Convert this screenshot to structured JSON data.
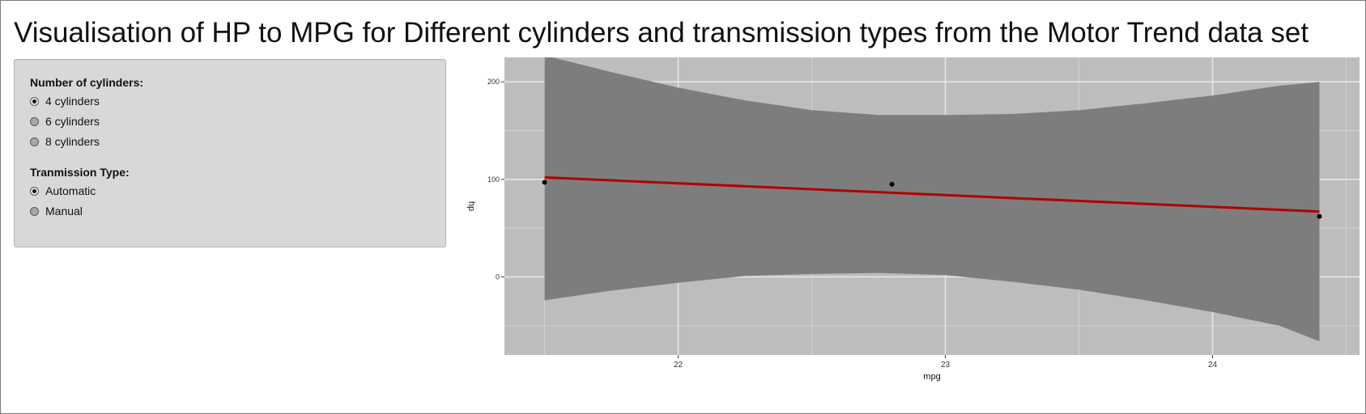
{
  "page": {
    "title": "Visualisation of HP to MPG for Different cylinders and transmission types from the Motor Trend data set"
  },
  "sidebar": {
    "cylinders": {
      "label": "Number of cylinders:",
      "options": [
        {
          "label": "4 cylinders",
          "selected": true
        },
        {
          "label": "6 cylinders",
          "selected": false
        },
        {
          "label": "8 cylinders",
          "selected": false
        }
      ]
    },
    "transmission": {
      "label": "Tranmission Type:",
      "options": [
        {
          "label": "Automatic",
          "selected": true
        },
        {
          "label": "Manual",
          "selected": false
        }
      ]
    }
  },
  "chart_data": {
    "type": "scatter",
    "xlabel": "mpg",
    "ylabel": "hp",
    "xlim": [
      21.35,
      24.55
    ],
    "ylim": [
      -80,
      225
    ],
    "x_ticks": [
      22,
      23,
      24
    ],
    "y_ticks": [
      0,
      100,
      200
    ],
    "grid": true,
    "points": [
      {
        "x": 21.5,
        "y": 97
      },
      {
        "x": 22.8,
        "y": 95
      },
      {
        "x": 24.4,
        "y": 62
      }
    ],
    "fit_line": {
      "x": [
        21.5,
        24.4
      ],
      "y": [
        102,
        67
      ],
      "color": "#b00000"
    },
    "confidence_band": {
      "x": [
        21.5,
        21.75,
        22.0,
        22.25,
        22.5,
        22.75,
        23.0,
        23.25,
        23.5,
        23.75,
        24.0,
        24.25,
        24.4
      ],
      "upper": [
        227,
        210,
        194,
        181,
        171,
        166,
        166,
        167,
        171,
        178,
        186,
        196,
        200
      ],
      "lower": [
        -24,
        -14,
        -6,
        1,
        3,
        4,
        2,
        -5,
        -13,
        -24,
        -36,
        -50,
        -66
      ]
    },
    "colors": {
      "panel": "#bdbdbd",
      "band": "#7d7d7d",
      "grid": "#e5e5e5",
      "points": "#000000"
    }
  }
}
